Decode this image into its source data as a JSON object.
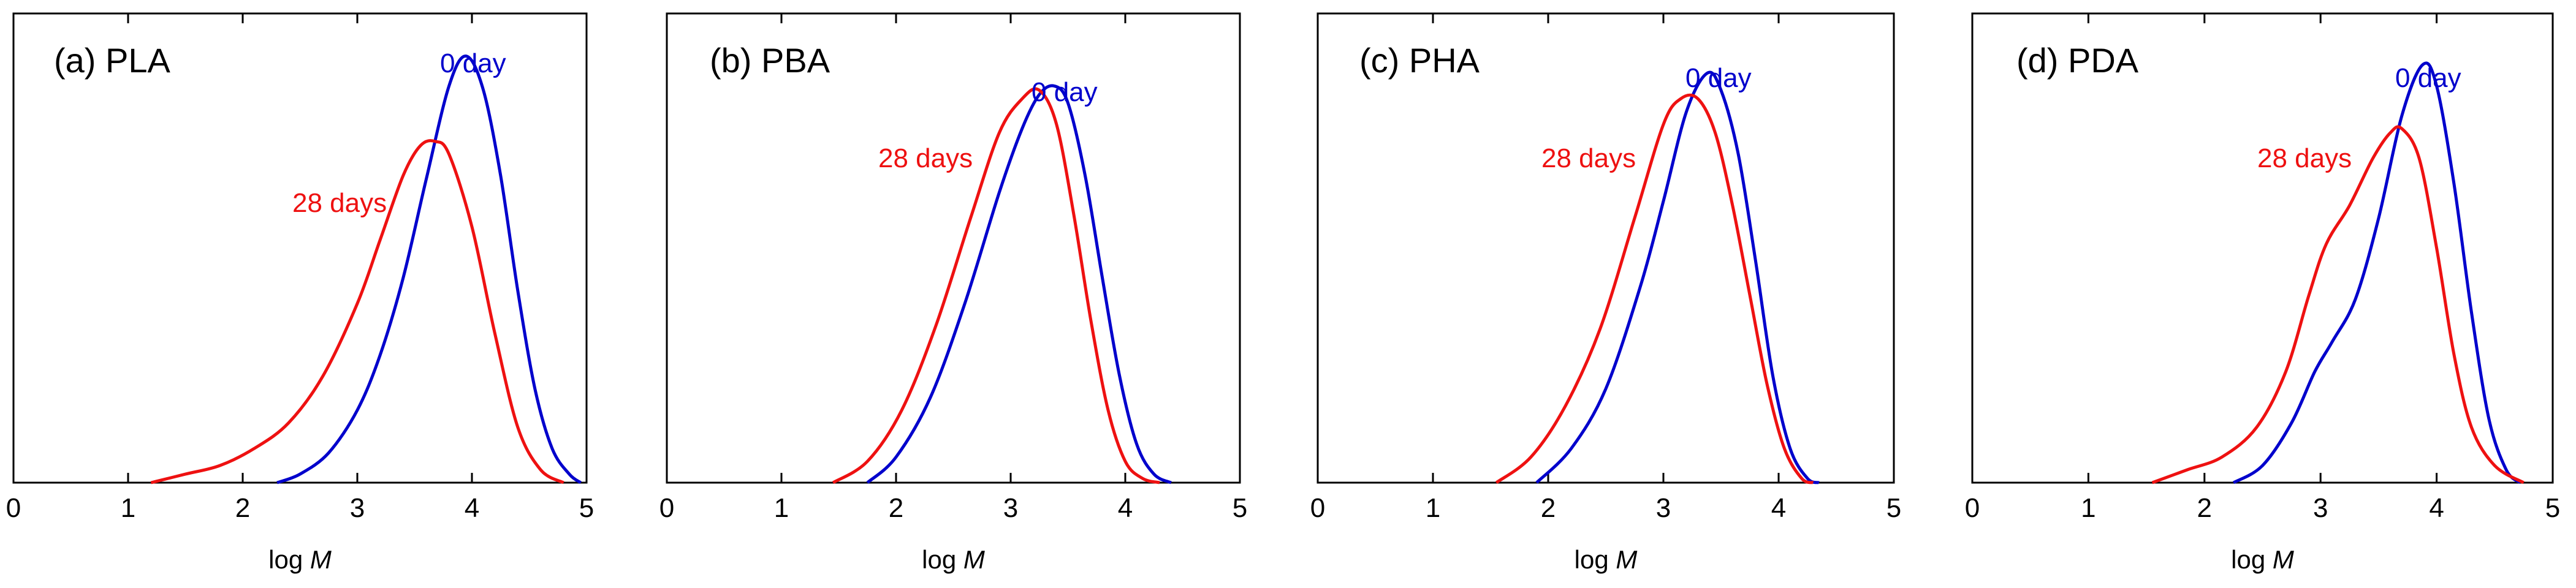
{
  "colors": {
    "day0": "#0000cc",
    "day28": "#ee1111",
    "axis": "#000000"
  },
  "chart_data": [
    {
      "type": "line",
      "panel": "(a) PLA",
      "xlabel": "log M",
      "ylabel": "",
      "xlim": [
        0,
        5
      ],
      "ylim": [
        0,
        1.1
      ],
      "xticks": [
        "0",
        "1",
        "2",
        "3",
        "4",
        "5"
      ],
      "series": [
        {
          "name": "0 day",
          "color_key": "day0",
          "x": [
            2.3,
            2.5,
            2.75,
            3.0,
            3.2,
            3.4,
            3.6,
            3.8,
            3.95,
            4.1,
            4.25,
            4.4,
            4.55,
            4.7,
            4.85,
            4.95
          ],
          "y": [
            0.0,
            0.02,
            0.07,
            0.17,
            0.3,
            0.48,
            0.71,
            0.93,
            1.0,
            0.92,
            0.72,
            0.45,
            0.22,
            0.08,
            0.02,
            0.0
          ]
        },
        {
          "name": "28 days",
          "color_key": "day28",
          "x": [
            1.2,
            1.5,
            1.8,
            2.1,
            2.4,
            2.7,
            3.0,
            3.2,
            3.4,
            3.55,
            3.68,
            3.8,
            4.0,
            4.2,
            4.4,
            4.6,
            4.8
          ],
          "y": [
            0.0,
            0.02,
            0.04,
            0.08,
            0.14,
            0.25,
            0.42,
            0.57,
            0.72,
            0.79,
            0.8,
            0.77,
            0.6,
            0.35,
            0.13,
            0.03,
            0.0
          ]
        }
      ],
      "annotations": [
        {
          "text": "0 day",
          "series": "0 day"
        },
        {
          "text": "28 days",
          "series": "28 days"
        }
      ]
    },
    {
      "type": "line",
      "panel": "(b) PBA",
      "xlabel": "log M",
      "ylabel": "",
      "xlim": [
        0,
        5
      ],
      "ylim": [
        0,
        1.1
      ],
      "xticks": [
        "0",
        "1",
        "2",
        "3",
        "4",
        "5"
      ],
      "series": [
        {
          "name": "0 day",
          "color_key": "day0",
          "x": [
            1.75,
            2.0,
            2.3,
            2.6,
            2.9,
            3.1,
            3.25,
            3.38,
            3.5,
            3.65,
            3.8,
            3.95,
            4.1,
            4.25,
            4.4
          ],
          "y": [
            0.0,
            0.06,
            0.2,
            0.42,
            0.68,
            0.83,
            0.91,
            0.93,
            0.89,
            0.72,
            0.48,
            0.25,
            0.09,
            0.02,
            0.0
          ]
        },
        {
          "name": "28 days",
          "color_key": "day28",
          "x": [
            1.45,
            1.75,
            2.05,
            2.35,
            2.65,
            2.9,
            3.1,
            3.25,
            3.4,
            3.55,
            3.7,
            3.85,
            4.0,
            4.15,
            4.3
          ],
          "y": [
            0.0,
            0.05,
            0.17,
            0.37,
            0.62,
            0.82,
            0.9,
            0.92,
            0.84,
            0.63,
            0.38,
            0.17,
            0.05,
            0.01,
            0.0
          ]
        }
      ],
      "annotations": [
        {
          "text": "0 day",
          "series": "0 day"
        },
        {
          "text": "28 days",
          "series": "28 days"
        }
      ]
    },
    {
      "type": "line",
      "panel": "(c) PHA",
      "xlabel": "log M",
      "ylabel": "",
      "xlim": [
        0,
        5
      ],
      "ylim": [
        0,
        1.1
      ],
      "xticks": [
        "0",
        "1",
        "2",
        "3",
        "4",
        "5"
      ],
      "series": [
        {
          "name": "0 day",
          "color_key": "day0",
          "x": [
            1.9,
            2.2,
            2.5,
            2.8,
            3.0,
            3.2,
            3.38,
            3.5,
            3.65,
            3.8,
            3.95,
            4.1,
            4.25,
            4.35
          ],
          "y": [
            0.0,
            0.08,
            0.22,
            0.46,
            0.66,
            0.87,
            0.96,
            0.92,
            0.77,
            0.52,
            0.25,
            0.08,
            0.01,
            0.0
          ]
        },
        {
          "name": "28 days",
          "color_key": "day28",
          "x": [
            1.55,
            1.85,
            2.15,
            2.45,
            2.75,
            3.0,
            3.15,
            3.3,
            3.45,
            3.6,
            3.75,
            3.9,
            4.05,
            4.2,
            4.3
          ],
          "y": [
            0.0,
            0.06,
            0.18,
            0.36,
            0.62,
            0.84,
            0.9,
            0.9,
            0.82,
            0.65,
            0.44,
            0.23,
            0.08,
            0.01,
            0.0
          ]
        }
      ],
      "annotations": [
        {
          "text": "0 day",
          "series": "0 day"
        },
        {
          "text": "28 days",
          "series": "28 days"
        }
      ]
    },
    {
      "type": "line",
      "panel": "(d) PDA",
      "xlabel": "log M",
      "ylabel": "",
      "xlim": [
        0,
        5
      ],
      "ylim": [
        0,
        1.1
      ],
      "xticks": [
        "0",
        "1",
        "2",
        "3",
        "4",
        "5"
      ],
      "series": [
        {
          "name": "0 day",
          "color_key": "day0",
          "x": [
            2.25,
            2.5,
            2.75,
            2.95,
            3.1,
            3.3,
            3.5,
            3.7,
            3.88,
            4.0,
            4.15,
            4.3,
            4.45,
            4.6,
            4.72
          ],
          "y": [
            0.0,
            0.04,
            0.14,
            0.26,
            0.33,
            0.43,
            0.62,
            0.86,
            0.98,
            0.93,
            0.7,
            0.4,
            0.15,
            0.03,
            0.0
          ]
        },
        {
          "name": "28 days",
          "color_key": "day28",
          "x": [
            1.55,
            1.85,
            2.15,
            2.45,
            2.7,
            2.9,
            3.05,
            3.25,
            3.45,
            3.6,
            3.7,
            3.85,
            4.0,
            4.15,
            4.3,
            4.5,
            4.75
          ],
          "y": [
            0.0,
            0.03,
            0.06,
            0.13,
            0.26,
            0.44,
            0.56,
            0.65,
            0.76,
            0.82,
            0.83,
            0.76,
            0.55,
            0.3,
            0.13,
            0.04,
            0.0
          ]
        }
      ],
      "annotations": [
        {
          "text": "0 day",
          "series": "0 day"
        },
        {
          "text": "28 days",
          "series": "28 days"
        }
      ]
    }
  ]
}
